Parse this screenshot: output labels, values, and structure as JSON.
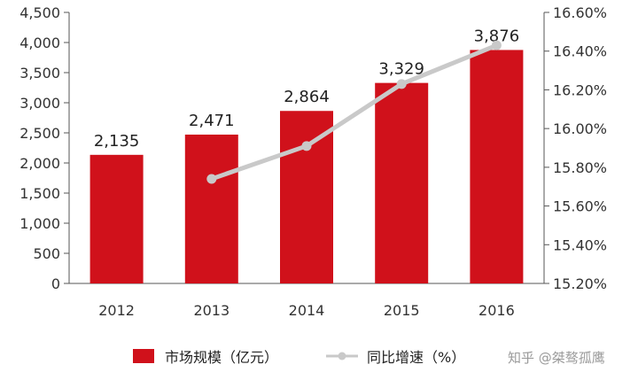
{
  "chart_data": {
    "type": "bar",
    "categories": [
      "2012",
      "2013",
      "2014",
      "2015",
      "2016"
    ],
    "series": [
      {
        "name": "市场规模（亿元）",
        "type": "bar",
        "axis": "left",
        "values": [
          2135,
          2471,
          2864,
          3329,
          3876
        ],
        "labels": [
          "2,135",
          "2,471",
          "2,864",
          "3,329",
          "3,876"
        ],
        "color": "#d0111b"
      },
      {
        "name": "同比增速（%）",
        "type": "line",
        "axis": "right",
        "values": [
          null,
          15.74,
          15.91,
          16.23,
          16.43
        ],
        "color": "#c9c9c9"
      }
    ],
    "y_left": {
      "min": 0,
      "max": 4500,
      "ticks": [
        0,
        500,
        1000,
        1500,
        2000,
        2500,
        3000,
        3500,
        4000,
        4500
      ],
      "tick_labels": [
        "0",
        "500",
        "1,000",
        "1,500",
        "2,000",
        "2,500",
        "3,000",
        "3,500",
        "4,000",
        "4,500"
      ]
    },
    "y_right": {
      "min": 15.2,
      "max": 16.6,
      "ticks": [
        15.2,
        15.4,
        15.6,
        15.8,
        16.0,
        16.2,
        16.4,
        16.6
      ],
      "tick_labels": [
        "15.20%",
        "15.40%",
        "15.60%",
        "15.80%",
        "16.00%",
        "16.20%",
        "16.40%",
        "16.60%"
      ]
    },
    "grid": false,
    "legend": "bottom-center"
  },
  "watermark": "知乎 @桀骜孤鹰"
}
